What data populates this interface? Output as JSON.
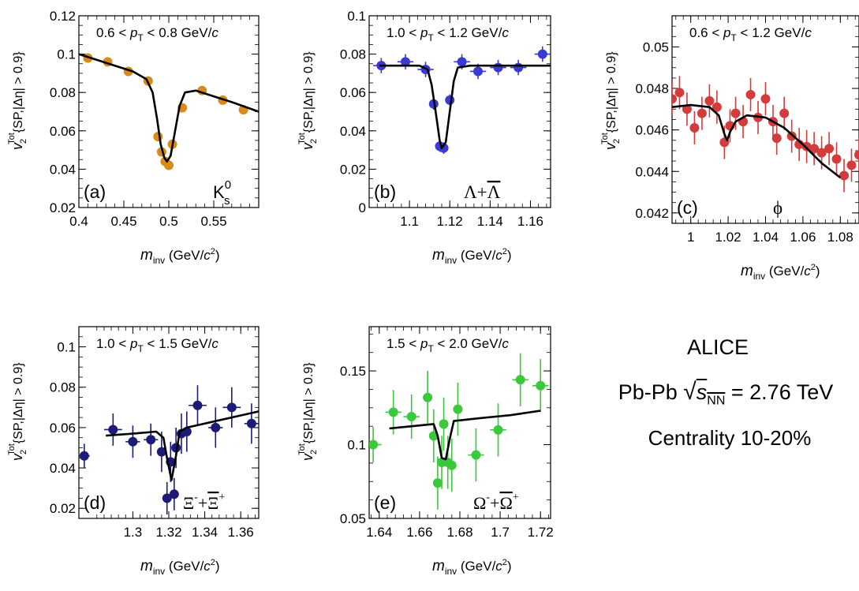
{
  "chart_data": [
    {
      "type": "scatter",
      "panel_label": "(a)",
      "particle": "K",
      "particle_sup": "0",
      "particle_sub": "s",
      "pt_range": {
        "low": "0.6",
        "high": "0.8",
        "unit": "GeV/c"
      },
      "xlabel": "m_inv (GeV/c²)",
      "ylabel": "v2 Tot {SP,|Δη| > 0.9}",
      "xlim": [
        0.4,
        0.6
      ],
      "ylim": [
        0.02,
        0.12
      ],
      "xticks": [
        0.4,
        0.45,
        0.5,
        0.55
      ],
      "xtick_labels": [
        "0.4",
        "0.45",
        "0.5",
        "0.55"
      ],
      "yticks": [
        0.02,
        0.04,
        0.06,
        0.08,
        0.1,
        0.12
      ],
      "ytick_labels": [
        "0.02",
        "0.04",
        "0.06",
        "0.08",
        "0.1",
        "0.12"
      ],
      "marker_color": "#d98a1a",
      "points": [
        {
          "x": 0.41,
          "y": 0.098,
          "xerr": 0.005,
          "yerr": 0.001
        },
        {
          "x": 0.432,
          "y": 0.096,
          "xerr": 0.005,
          "yerr": 0.001
        },
        {
          "x": 0.455,
          "y": 0.091,
          "xerr": 0.005,
          "yerr": 0.001
        },
        {
          "x": 0.477,
          "y": 0.086,
          "xerr": 0.005,
          "yerr": 0.001
        },
        {
          "x": 0.488,
          "y": 0.057,
          "xerr": 0.002,
          "yerr": 0.001
        },
        {
          "x": 0.492,
          "y": 0.049,
          "xerr": 0.002,
          "yerr": 0.001
        },
        {
          "x": 0.496,
          "y": 0.044,
          "xerr": 0.002,
          "yerr": 0.001
        },
        {
          "x": 0.5,
          "y": 0.042,
          "xerr": 0.002,
          "yerr": 0.001
        },
        {
          "x": 0.504,
          "y": 0.053,
          "xerr": 0.002,
          "yerr": 0.001
        },
        {
          "x": 0.515,
          "y": 0.072,
          "xerr": 0.005,
          "yerr": 0.001
        },
        {
          "x": 0.537,
          "y": 0.081,
          "xerr": 0.005,
          "yerr": 0.001
        },
        {
          "x": 0.56,
          "y": 0.076,
          "xerr": 0.005,
          "yerr": 0.001
        },
        {
          "x": 0.583,
          "y": 0.071,
          "xerr": 0.005,
          "yerr": 0.001
        }
      ],
      "fit": [
        [
          0.4,
          0.1
        ],
        [
          0.42,
          0.097
        ],
        [
          0.44,
          0.094
        ],
        [
          0.46,
          0.091
        ],
        [
          0.475,
          0.087
        ],
        [
          0.482,
          0.08
        ],
        [
          0.487,
          0.066
        ],
        [
          0.491,
          0.053
        ],
        [
          0.495,
          0.046
        ],
        [
          0.498,
          0.044
        ],
        [
          0.502,
          0.047
        ],
        [
          0.507,
          0.06
        ],
        [
          0.512,
          0.073
        ],
        [
          0.518,
          0.08
        ],
        [
          0.53,
          0.081
        ],
        [
          0.55,
          0.078
        ],
        [
          0.57,
          0.075
        ],
        [
          0.6,
          0.07
        ]
      ]
    },
    {
      "type": "scatter",
      "panel_label": "(b)",
      "particle": "Λ+Λ",
      "pt_range": {
        "low": "1.0",
        "high": "1.2",
        "unit": "GeV/c"
      },
      "xlabel": "m_inv (GeV/c²)",
      "ylabel": "v2 Tot {SP,|Δη| > 0.9}",
      "xlim": [
        1.08,
        1.17
      ],
      "ylim": [
        0.0,
        0.1
      ],
      "xticks": [
        1.1,
        1.12,
        1.14,
        1.16
      ],
      "xtick_labels": [
        "1.1",
        "1.12",
        "1.14",
        "1.16"
      ],
      "yticks": [
        0.0,
        0.02,
        0.04,
        0.06,
        0.08,
        0.1
      ],
      "ytick_labels": [
        "0",
        "0.02",
        "0.04",
        "0.06",
        "0.08",
        "0.1"
      ],
      "marker_color": "#3a3ad0",
      "points": [
        {
          "x": 1.086,
          "y": 0.074,
          "xerr": 0.004,
          "yerr": 0.004
        },
        {
          "x": 1.098,
          "y": 0.076,
          "xerr": 0.004,
          "yerr": 0.004
        },
        {
          "x": 1.108,
          "y": 0.072,
          "xerr": 0.004,
          "yerr": 0.004
        },
        {
          "x": 1.112,
          "y": 0.054,
          "xerr": 0.001,
          "yerr": 0.003
        },
        {
          "x": 1.115,
          "y": 0.032,
          "xerr": 0.001,
          "yerr": 0.003
        },
        {
          "x": 1.117,
          "y": 0.031,
          "xerr": 0.001,
          "yerr": 0.003
        },
        {
          "x": 1.12,
          "y": 0.056,
          "xerr": 0.001,
          "yerr": 0.003
        },
        {
          "x": 1.126,
          "y": 0.076,
          "xerr": 0.004,
          "yerr": 0.004
        },
        {
          "x": 1.134,
          "y": 0.071,
          "xerr": 0.004,
          "yerr": 0.004
        },
        {
          "x": 1.144,
          "y": 0.073,
          "xerr": 0.004,
          "yerr": 0.004
        },
        {
          "x": 1.154,
          "y": 0.073,
          "xerr": 0.004,
          "yerr": 0.004
        },
        {
          "x": 1.166,
          "y": 0.08,
          "xerr": 0.004,
          "yerr": 0.004
        }
      ],
      "fit": [
        [
          1.085,
          0.074
        ],
        [
          1.105,
          0.074
        ],
        [
          1.109,
          0.072
        ],
        [
          1.111,
          0.064
        ],
        [
          1.113,
          0.05
        ],
        [
          1.115,
          0.035
        ],
        [
          1.116,
          0.031
        ],
        [
          1.118,
          0.034
        ],
        [
          1.12,
          0.05
        ],
        [
          1.122,
          0.066
        ],
        [
          1.124,
          0.073
        ],
        [
          1.13,
          0.074
        ],
        [
          1.17,
          0.074
        ]
      ]
    },
    {
      "type": "scatter",
      "panel_label": "(c)",
      "particle": "ϕ",
      "pt_range": {
        "low": "0.6",
        "high": "1.2",
        "unit": "GeV/c"
      },
      "xlabel": "m_inv (GeV/c²)",
      "ylabel": "v2 Tot {SP,|Δη| > 0.9}",
      "xlim": [
        0.99,
        1.09
      ],
      "ylim": [
        0.0415,
        0.0515
      ],
      "xticks": [
        1.0,
        1.02,
        1.04,
        1.06,
        1.08
      ],
      "xtick_labels": [
        "1",
        "1.02",
        "1.04",
        "1.06",
        "1.08"
      ],
      "yticks": [
        0.042,
        0.044,
        0.046,
        0.048,
        0.05
      ],
      "ytick_labels": [
        "0.042",
        "0.044",
        "0.046",
        "0.048",
        "0.05"
      ],
      "marker_color": "#d23c3c",
      "points": [
        {
          "x": 0.99,
          "y": 0.0475,
          "xerr": 0.002,
          "yerr": 0.0008
        },
        {
          "x": 0.994,
          "y": 0.0478,
          "xerr": 0.002,
          "yerr": 0.0008
        },
        {
          "x": 0.998,
          "y": 0.047,
          "xerr": 0.002,
          "yerr": 0.0008
        },
        {
          "x": 1.002,
          "y": 0.0461,
          "xerr": 0.002,
          "yerr": 0.0008
        },
        {
          "x": 1.006,
          "y": 0.0468,
          "xerr": 0.002,
          "yerr": 0.0008
        },
        {
          "x": 1.01,
          "y": 0.0474,
          "xerr": 0.002,
          "yerr": 0.0008
        },
        {
          "x": 1.014,
          "y": 0.0471,
          "xerr": 0.002,
          "yerr": 0.0008
        },
        {
          "x": 1.018,
          "y": 0.0454,
          "xerr": 0.001,
          "yerr": 0.0008
        },
        {
          "x": 1.021,
          "y": 0.0462,
          "xerr": 0.001,
          "yerr": 0.0008
        },
        {
          "x": 1.024,
          "y": 0.0468,
          "xerr": 0.002,
          "yerr": 0.0008
        },
        {
          "x": 1.028,
          "y": 0.0464,
          "xerr": 0.002,
          "yerr": 0.0008
        },
        {
          "x": 1.032,
          "y": 0.0477,
          "xerr": 0.002,
          "yerr": 0.0008
        },
        {
          "x": 1.036,
          "y": 0.0466,
          "xerr": 0.002,
          "yerr": 0.0008
        },
        {
          "x": 1.04,
          "y": 0.0475,
          "xerr": 0.002,
          "yerr": 0.0008
        },
        {
          "x": 1.044,
          "y": 0.0464,
          "xerr": 0.002,
          "yerr": 0.0008
        },
        {
          "x": 1.046,
          "y": 0.0456,
          "xerr": 0.002,
          "yerr": 0.0008
        },
        {
          "x": 1.05,
          "y": 0.0468,
          "xerr": 0.002,
          "yerr": 0.0008
        },
        {
          "x": 1.054,
          "y": 0.0457,
          "xerr": 0.002,
          "yerr": 0.0008
        },
        {
          "x": 1.058,
          "y": 0.0453,
          "xerr": 0.002,
          "yerr": 0.0008
        },
        {
          "x": 1.062,
          "y": 0.0452,
          "xerr": 0.002,
          "yerr": 0.0008
        },
        {
          "x": 1.066,
          "y": 0.0451,
          "xerr": 0.002,
          "yerr": 0.0008
        },
        {
          "x": 1.07,
          "y": 0.0449,
          "xerr": 0.002,
          "yerr": 0.0008
        },
        {
          "x": 1.074,
          "y": 0.0451,
          "xerr": 0.002,
          "yerr": 0.0008
        },
        {
          "x": 1.078,
          "y": 0.0446,
          "xerr": 0.002,
          "yerr": 0.0008
        },
        {
          "x": 1.082,
          "y": 0.0438,
          "xerr": 0.002,
          "yerr": 0.0008
        },
        {
          "x": 1.086,
          "y": 0.0443,
          "xerr": 0.002,
          "yerr": 0.0008
        },
        {
          "x": 1.09,
          "y": 0.0448,
          "xerr": 0.002,
          "yerr": 0.0008
        },
        {
          "x": 1.094,
          "y": 0.0431,
          "xerr": 0.002,
          "yerr": 0.0008
        }
      ],
      "fit": [
        [
          0.99,
          0.0471
        ],
        [
          1.0,
          0.0472
        ],
        [
          1.01,
          0.0471
        ],
        [
          1.015,
          0.0467
        ],
        [
          1.018,
          0.0458
        ],
        [
          1.0195,
          0.0455
        ],
        [
          1.021,
          0.0459
        ],
        [
          1.024,
          0.0464
        ],
        [
          1.03,
          0.0467
        ],
        [
          1.04,
          0.0466
        ],
        [
          1.05,
          0.0461
        ],
        [
          1.06,
          0.0453
        ],
        [
          1.07,
          0.0444
        ],
        [
          1.08,
          0.0437
        ]
      ]
    },
    {
      "type": "scatter",
      "panel_label": "(d)",
      "particle": "Ξ⁻+Ξ⁺",
      "pt_range": {
        "low": "1.0",
        "high": "1.5",
        "unit": "GeV/c"
      },
      "xlabel": "m_inv (GeV/c²)",
      "ylabel": "v2 Tot {SP,|Δη| > 0.9}",
      "xlim": [
        1.27,
        1.37
      ],
      "ylim": [
        0.015,
        0.11
      ],
      "xticks": [
        1.3,
        1.32,
        1.34,
        1.36
      ],
      "xtick_labels": [
        "1.3",
        "1.32",
        "1.34",
        "1.36"
      ],
      "yticks": [
        0.02,
        0.04,
        0.06,
        0.08,
        0.1
      ],
      "ytick_labels": [
        "0.02",
        "0.04",
        "0.06",
        "0.08",
        "0.1"
      ],
      "marker_color": "#1c1c78",
      "points": [
        {
          "x": 1.273,
          "y": 0.046,
          "xerr": 0.003,
          "yerr": 0.006
        },
        {
          "x": 1.289,
          "y": 0.059,
          "xerr": 0.005,
          "yerr": 0.008
        },
        {
          "x": 1.3,
          "y": 0.053,
          "xerr": 0.004,
          "yerr": 0.008
        },
        {
          "x": 1.31,
          "y": 0.054,
          "xerr": 0.004,
          "yerr": 0.008
        },
        {
          "x": 1.316,
          "y": 0.048,
          "xerr": 0.002,
          "yerr": 0.01
        },
        {
          "x": 1.319,
          "y": 0.025,
          "xerr": 0.001,
          "yerr": 0.008
        },
        {
          "x": 1.321,
          "y": 0.043,
          "xerr": 0.001,
          "yerr": 0.01
        },
        {
          "x": 1.323,
          "y": 0.027,
          "xerr": 0.001,
          "yerr": 0.008
        },
        {
          "x": 1.324,
          "y": 0.05,
          "xerr": 0.001,
          "yerr": 0.01
        },
        {
          "x": 1.327,
          "y": 0.057,
          "xerr": 0.002,
          "yerr": 0.01
        },
        {
          "x": 1.33,
          "y": 0.058,
          "xerr": 0.002,
          "yerr": 0.01
        },
        {
          "x": 1.336,
          "y": 0.071,
          "xerr": 0.005,
          "yerr": 0.01
        },
        {
          "x": 1.346,
          "y": 0.06,
          "xerr": 0.004,
          "yerr": 0.01
        },
        {
          "x": 1.355,
          "y": 0.07,
          "xerr": 0.005,
          "yerr": 0.01
        },
        {
          "x": 1.366,
          "y": 0.062,
          "xerr": 0.004,
          "yerr": 0.01
        }
      ],
      "fit": [
        [
          1.285,
          0.056
        ],
        [
          1.3,
          0.057
        ],
        [
          1.313,
          0.058
        ],
        [
          1.317,
          0.055
        ],
        [
          1.319,
          0.045
        ],
        [
          1.3215,
          0.034
        ],
        [
          1.324,
          0.046
        ],
        [
          1.326,
          0.058
        ],
        [
          1.33,
          0.06
        ],
        [
          1.345,
          0.063
        ],
        [
          1.36,
          0.066
        ],
        [
          1.37,
          0.068
        ]
      ]
    },
    {
      "type": "scatter",
      "panel_label": "(e)",
      "particle": "Ω⁻+Ω⁺",
      "pt_range": {
        "low": "1.5",
        "high": "2.0",
        "unit": "GeV/c"
      },
      "xlabel": "m_inv (GeV/c²)",
      "ylabel": "v2 Tot {SP,|Δη| > 0.9}",
      "xlim": [
        1.635,
        1.725
      ],
      "ylim": [
        0.05,
        0.18
      ],
      "xticks": [
        1.64,
        1.66,
        1.68,
        1.7,
        1.72
      ],
      "xtick_labels": [
        "1.64",
        "1.66",
        "1.68",
        "1.7",
        "1.72"
      ],
      "yticks": [
        0.05,
        0.1,
        0.15
      ],
      "ytick_labels": [
        "0.05",
        "0.1",
        "0.15"
      ],
      "marker_color": "#3cc83c",
      "points": [
        {
          "x": 1.637,
          "y": 0.1,
          "xerr": 0.004,
          "yerr": 0.012
        },
        {
          "x": 1.647,
          "y": 0.122,
          "xerr": 0.004,
          "yerr": 0.015
        },
        {
          "x": 1.656,
          "y": 0.119,
          "xerr": 0.004,
          "yerr": 0.015
        },
        {
          "x": 1.664,
          "y": 0.132,
          "xerr": 0.002,
          "yerr": 0.018
        },
        {
          "x": 1.667,
          "y": 0.106,
          "xerr": 0.001,
          "yerr": 0.018
        },
        {
          "x": 1.669,
          "y": 0.074,
          "xerr": 0.001,
          "yerr": 0.018
        },
        {
          "x": 1.671,
          "y": 0.088,
          "xerr": 0.001,
          "yerr": 0.018
        },
        {
          "x": 1.672,
          "y": 0.114,
          "xerr": 0.001,
          "yerr": 0.018
        },
        {
          "x": 1.674,
          "y": 0.088,
          "xerr": 0.001,
          "yerr": 0.018
        },
        {
          "x": 1.676,
          "y": 0.086,
          "xerr": 0.002,
          "yerr": 0.018
        },
        {
          "x": 1.679,
          "y": 0.124,
          "xerr": 0.002,
          "yerr": 0.018
        },
        {
          "x": 1.688,
          "y": 0.093,
          "xerr": 0.004,
          "yerr": 0.018
        },
        {
          "x": 1.699,
          "y": 0.11,
          "xerr": 0.004,
          "yerr": 0.018
        },
        {
          "x": 1.71,
          "y": 0.144,
          "xerr": 0.004,
          "yerr": 0.018
        },
        {
          "x": 1.72,
          "y": 0.14,
          "xerr": 0.004,
          "yerr": 0.018
        }
      ],
      "fit": [
        [
          1.645,
          0.111
        ],
        [
          1.66,
          0.113
        ],
        [
          1.667,
          0.114
        ],
        [
          1.669,
          0.106
        ],
        [
          1.671,
          0.091
        ],
        [
          1.673,
          0.09
        ],
        [
          1.675,
          0.104
        ],
        [
          1.677,
          0.116
        ],
        [
          1.69,
          0.118
        ],
        [
          1.705,
          0.12
        ],
        [
          1.72,
          0.123
        ]
      ]
    }
  ],
  "legend": {
    "experiment": "ALICE",
    "system_prefix": "Pb-Pb",
    "energy_var": "s",
    "energy_sub": "NN",
    "energy_value": "= 2.76 TeV",
    "centrality": "Centrality 10-20%"
  },
  "colors": {
    "fit_line": "#000000",
    "axis": "#000000"
  }
}
